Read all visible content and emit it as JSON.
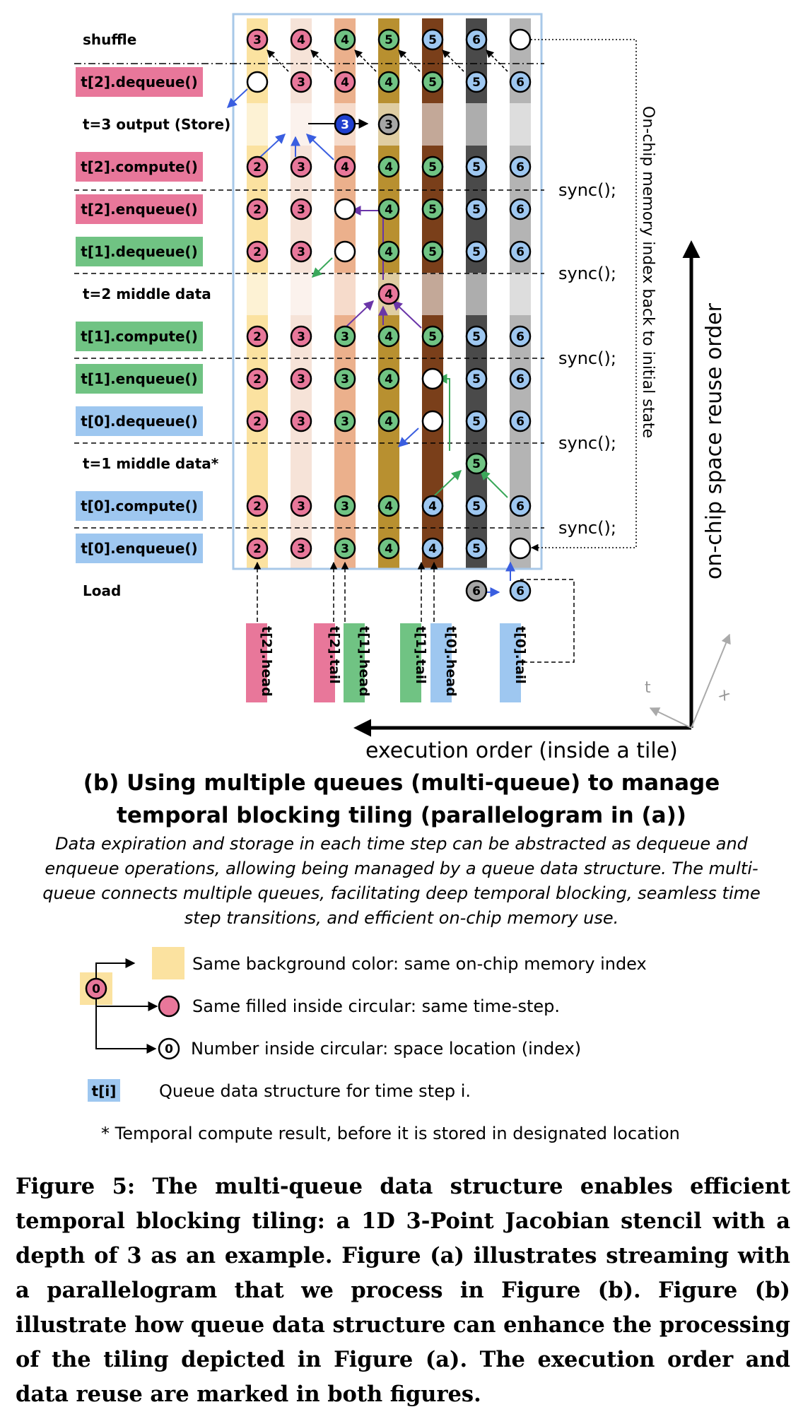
{
  "diagram": {
    "row_labels": [
      {
        "text": "shuffle",
        "tag": "none"
      },
      {
        "text": "t[2].dequeue()",
        "tag": "pink"
      },
      {
        "text": "t=3 output (Store)",
        "tag": "none"
      },
      {
        "text": "t[2].compute()",
        "tag": "pink"
      },
      {
        "text": "t[2].enqueue()",
        "tag": "pink"
      },
      {
        "text": "t[1].dequeue()",
        "tag": "green"
      },
      {
        "text": "t=2 middle data",
        "tag": "none"
      },
      {
        "text": "t[1].compute()",
        "tag": "green"
      },
      {
        "text": "t[1].enqueue()",
        "tag": "green"
      },
      {
        "text": "t[0].dequeue()",
        "tag": "blue"
      },
      {
        "text": "t=1 middle data*",
        "tag": "none"
      },
      {
        "text": "t[0].compute()",
        "tag": "blue"
      },
      {
        "text": "t[0].enqueue()",
        "tag": "blue"
      },
      {
        "text": "Load",
        "tag": "none"
      }
    ],
    "sync_label": "sync();",
    "memory_note": "On-chip memory index  back to initial state",
    "pointer_labels": [
      "t[2].head",
      "t[2].tail",
      "t[1].head",
      "t[1].tail",
      "t[0].head",
      "t[0].tail"
    ],
    "vertical_axis_label": "on-chip space reuse order",
    "horizontal_axis_label": "execution order (inside a tile)",
    "small_axis_t": "t",
    "small_axis_x": "x",
    "circle_value_zero": "0"
  },
  "colors": {
    "pink": "#e8779a",
    "green": "#70c383",
    "blue": "#9ec7f0",
    "frame_blue": "#a8c8e8",
    "output_blue": "#1f3fcf",
    "gray_circle": "#a6a6a6"
  },
  "grid": {
    "columns": [
      "#fbe2a0",
      "#f6e3d8",
      "#ebb08c",
      "#b89030",
      "#7a3f1a",
      "#4a4a4a",
      "#b4b4b4"
    ],
    "rows": [
      [
        "p3",
        "p4",
        "g4",
        "g5",
        "b5",
        "b6",
        "w"
      ],
      [
        "w",
        "p3",
        "p4",
        "g4",
        "g5",
        "b5",
        "b6"
      ],
      [
        null,
        null,
        "o3",
        "c3",
        null,
        null,
        null
      ],
      [
        "p2",
        "p3",
        "p4",
        "g4",
        "g5",
        "b5",
        "b6"
      ],
      [
        "p2",
        "p3",
        "w",
        "g4",
        "g5",
        "b5",
        "b6"
      ],
      [
        "p2",
        "p3",
        "w",
        "g4",
        "g5",
        "b5",
        "b6"
      ],
      [
        null,
        null,
        null,
        "p4",
        null,
        null,
        null
      ],
      [
        "p2",
        "p3",
        "g3",
        "g4",
        "g5",
        "b5",
        "b6"
      ],
      [
        "p2",
        "p3",
        "g3",
        "g4",
        "w",
        "b5",
        "b6"
      ],
      [
        "p2",
        "p3",
        "g3",
        "g4",
        "w",
        "b5",
        "b6"
      ],
      [
        null,
        null,
        null,
        null,
        null,
        "g5",
        null
      ],
      [
        "p2",
        "p3",
        "g3",
        "g4",
        "b4",
        "b5",
        "b6"
      ],
      [
        "p2",
        "p3",
        "g3",
        "g4",
        "b4",
        "b5",
        "w"
      ],
      [
        null,
        null,
        null,
        null,
        null,
        "c6",
        "b6"
      ]
    ]
  },
  "legend": {
    "same_background": "Same background color: same on-chip memory index",
    "same_filled": "Same filled inside circular: same time-step.",
    "number_inside": "Number inside circular: space location (index)",
    "queue_tag": "t[i]",
    "queue_desc": "Queue data structure for time step i.",
    "footnote": "* Temporal compute result, before it is stored in designated location"
  },
  "subcaption": {
    "title": "(b) Using multiple queues (multi-queue) to manage temporal blocking tiling (parallelogram in (a))",
    "description": "Data expiration and storage in each time step can be abstracted as dequeue and enqueue operations, allowing being managed by a queue data structure. The multi-queue connects multiple queues, facilitating deep temporal blocking, seamless time step transitions, and efficient on-chip memory use."
  },
  "caption": "Figure 5: The multi-queue data structure enables efficient temporal blocking tiling: a 1D 3-Point Jacobian stencil with a depth of 3 as an example. Figure (a) illustrates streaming with a parallelogram that we process in Figure (b). Figure (b) illustrate how queue data structure can enhance the processing of the tiling depicted in Figure (a). The execution order and data reuse are marked in both figures."
}
